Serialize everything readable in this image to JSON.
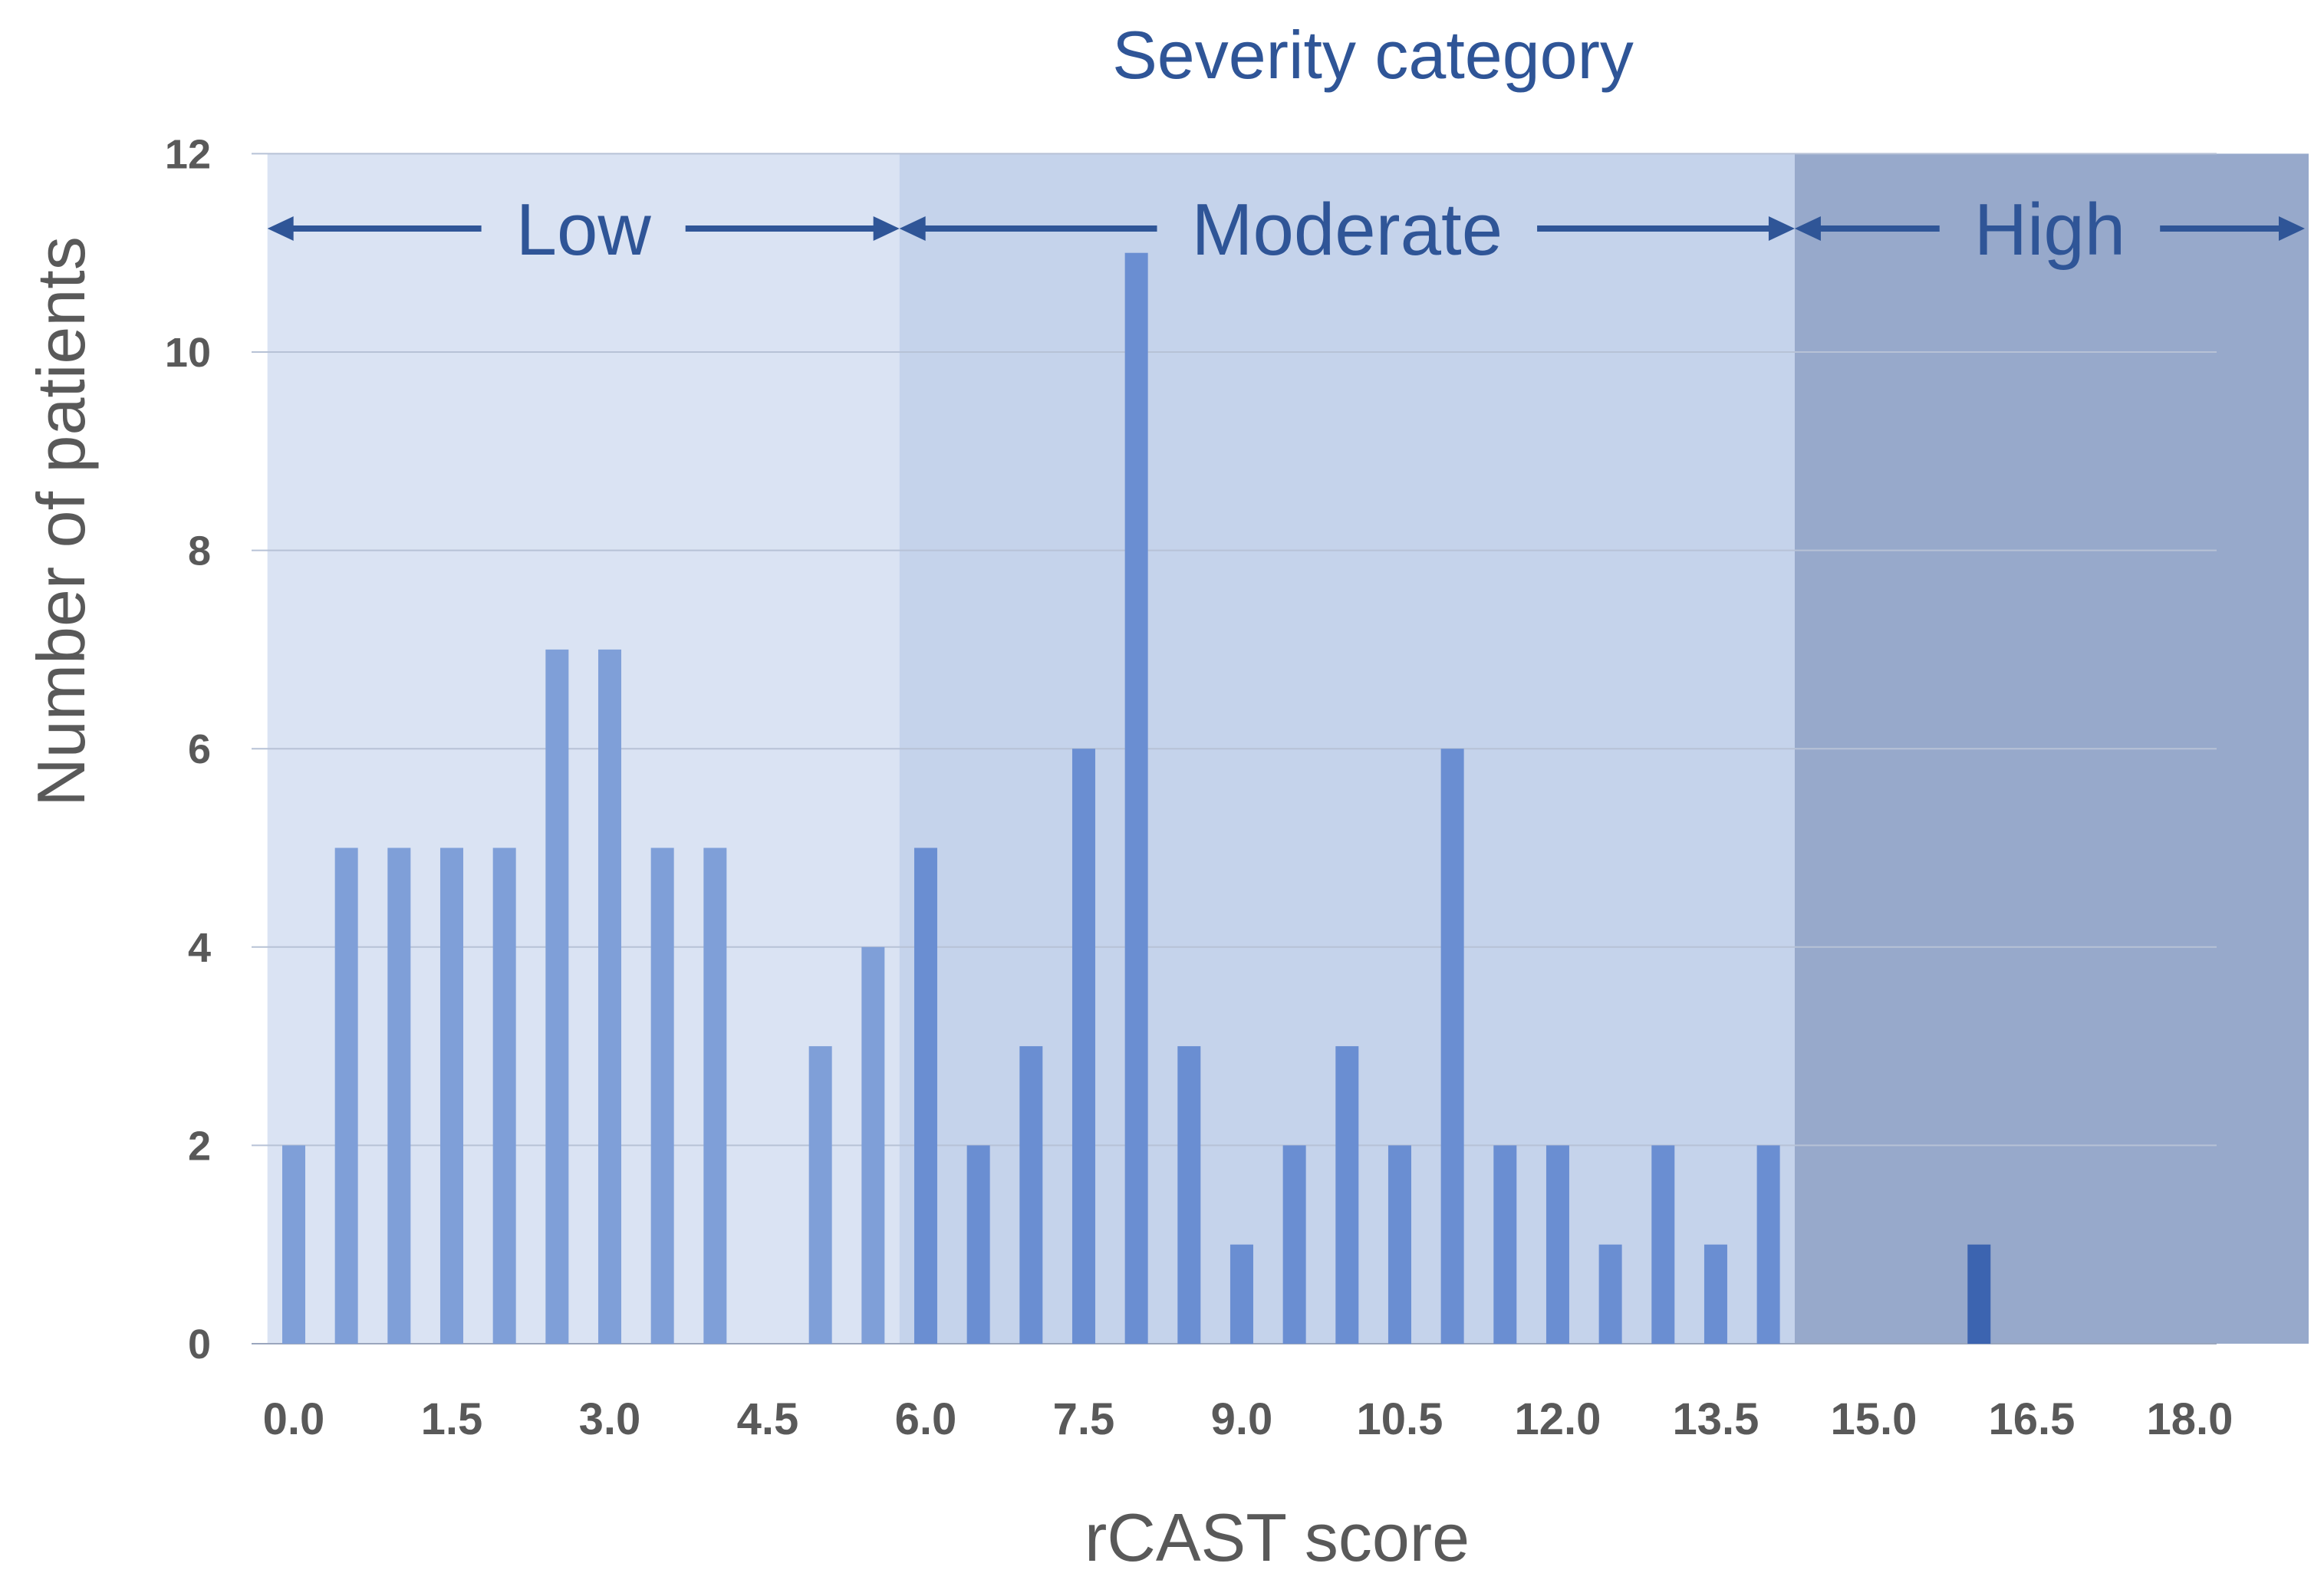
{
  "chart_data": {
    "type": "bar",
    "title": "Severity category",
    "xlabel": "rCAST score",
    "ylabel": "Number of patients",
    "ylim": [
      0,
      12
    ],
    "yticks": [
      "0",
      "2",
      "4",
      "6",
      "8",
      "10",
      "12"
    ],
    "xticks": [
      {
        "value": 0.0,
        "label": "0.0"
      },
      {
        "value": 1.5,
        "label": "1.5"
      },
      {
        "value": 3.0,
        "label": "3.0"
      },
      {
        "value": 4.5,
        "label": "4.5"
      },
      {
        "value": 6.0,
        "label": "6.0"
      },
      {
        "value": 7.5,
        "label": "7.5"
      },
      {
        "value": 9.0,
        "label": "9.0"
      },
      {
        "value": 10.5,
        "label": "10.5"
      },
      {
        "value": 12.0,
        "label": "12.0"
      },
      {
        "value": 13.5,
        "label": "13.5"
      },
      {
        "value": 15.0,
        "label": "15.0"
      },
      {
        "value": 16.5,
        "label": "16.5"
      },
      {
        "value": 18.0,
        "label": "18.0"
      }
    ],
    "x": [
      0.0,
      0.5,
      1.0,
      1.5,
      2.0,
      2.5,
      3.0,
      3.5,
      4.0,
      4.5,
      5.0,
      5.5,
      6.0,
      6.5,
      7.0,
      7.5,
      8.0,
      8.5,
      9.0,
      9.5,
      10.0,
      10.5,
      11.0,
      11.5,
      12.0,
      12.5,
      13.0,
      13.5,
      14.0,
      14.5,
      15.0,
      15.5,
      16.0,
      16.5,
      17.0,
      17.5,
      18.0
    ],
    "values": [
      2,
      5,
      5,
      5,
      5,
      7,
      7,
      5,
      5,
      0,
      3,
      4,
      5,
      2,
      3,
      6,
      11,
      3,
      1,
      2,
      3,
      2,
      6,
      2,
      2,
      1,
      2,
      1,
      2,
      0,
      0,
      0,
      1,
      0,
      0,
      0,
      0
    ],
    "regions": [
      {
        "label": "Low",
        "from": -0.25,
        "to": 5.75,
        "fill": "#dae3f3",
        "bar_color": "#7f9fd8"
      },
      {
        "label": "Moderate",
        "from": 5.75,
        "to": 14.25,
        "fill": "#c5d3eb",
        "bar_color": "#6a8ed2"
      },
      {
        "label": "High",
        "from": 14.25,
        "to": 19.25,
        "fill": "#97a9cb",
        "bar_color": "#3c64b0"
      }
    ],
    "colors": {
      "arrow": "#2f5597",
      "gridline": "#b7c2d6",
      "title": "#2f5597",
      "axis_text": "#595959"
    }
  }
}
